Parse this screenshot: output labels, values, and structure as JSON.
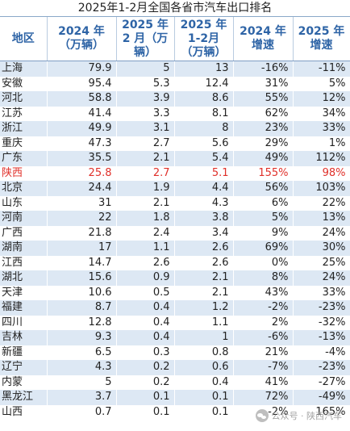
{
  "title": "2025年1-2月全国各省市汽车出口排名",
  "headers": [
    "地区",
    "2024 年\n（万辆）",
    "2025 年\n2 月（万\n辆）",
    "2025 年\n1-2月\n（万辆）",
    "2024 年\n增速",
    "2025 年\n增速"
  ],
  "rows": [
    [
      "上海",
      "79.9",
      "5",
      "13",
      "-16%",
      "-11%"
    ],
    [
      "安徽",
      "95.4",
      "5.3",
      "12.4",
      "31%",
      "5%"
    ],
    [
      "河北",
      "58.8",
      "3.9",
      "8.6",
      "55%",
      "12%"
    ],
    [
      "江苏",
      "41.4",
      "3.3",
      "8.1",
      "62%",
      "34%"
    ],
    [
      "浙江",
      "49.9",
      "3.1",
      "8",
      "23%",
      "33%"
    ],
    [
      "重庆",
      "47.3",
      "2.7",
      "5.6",
      "29%",
      "1%"
    ],
    [
      "广东",
      "35.5",
      "2.1",
      "5.4",
      "49%",
      "112%"
    ],
    [
      "陕西",
      "25.8",
      "2.7",
      "5.1",
      "155%",
      "98%"
    ],
    [
      "北京",
      "24.4",
      "1.9",
      "4.4",
      "56%",
      "103%"
    ],
    [
      "山东",
      "31",
      "2.1",
      "4.3",
      "6%",
      "22%"
    ],
    [
      "河南",
      "22",
      "1.8",
      "3.8",
      "5%",
      "13%"
    ],
    [
      "广西",
      "21.8",
      "2.4",
      "3.4",
      "9%",
      "24%"
    ],
    [
      "湖南",
      "17",
      "1.1",
      "2.6",
      "69%",
      "30%"
    ],
    [
      "江西",
      "14.7",
      "2.6",
      "2.6",
      "0%",
      "25%"
    ],
    [
      "湖北",
      "15.6",
      "0.9",
      "2.1",
      "8%",
      "24%"
    ],
    [
      "天津",
      "10.6",
      "0.5",
      "2.1",
      "43%",
      "33%"
    ],
    [
      "福建",
      "8.7",
      "0.4",
      "1.2",
      "-2%",
      "-23%"
    ],
    [
      "四川",
      "12.8",
      "0.4",
      "1.1",
      "2%",
      "-32%"
    ],
    [
      "吉林",
      "9.3",
      "0.4",
      "1",
      "-6%",
      "-13%"
    ],
    [
      "新疆",
      "6.5",
      "0.3",
      "0.8",
      "21%",
      "-4%"
    ],
    [
      "辽宁",
      "4.3",
      "0.2",
      "0.6",
      "-7%",
      "-23%"
    ],
    [
      "内蒙",
      "5",
      "0.2",
      "0.4",
      "41%",
      "-27%"
    ],
    [
      "黑龙江",
      "3.7",
      "0.1",
      "0.1",
      "72%",
      "-49%"
    ],
    [
      "山西",
      "0.7",
      "0.1",
      "0.1",
      "-2%",
      "165%"
    ]
  ],
  "highlight_row": 7,
  "highlight_color": "#e0302a",
  "header_color": "#2e64a6",
  "stripe_color": "#dde8f4",
  "watermark": {
    "text": "公众号 · 陕西汽车",
    "icon": "wechat-icon"
  }
}
